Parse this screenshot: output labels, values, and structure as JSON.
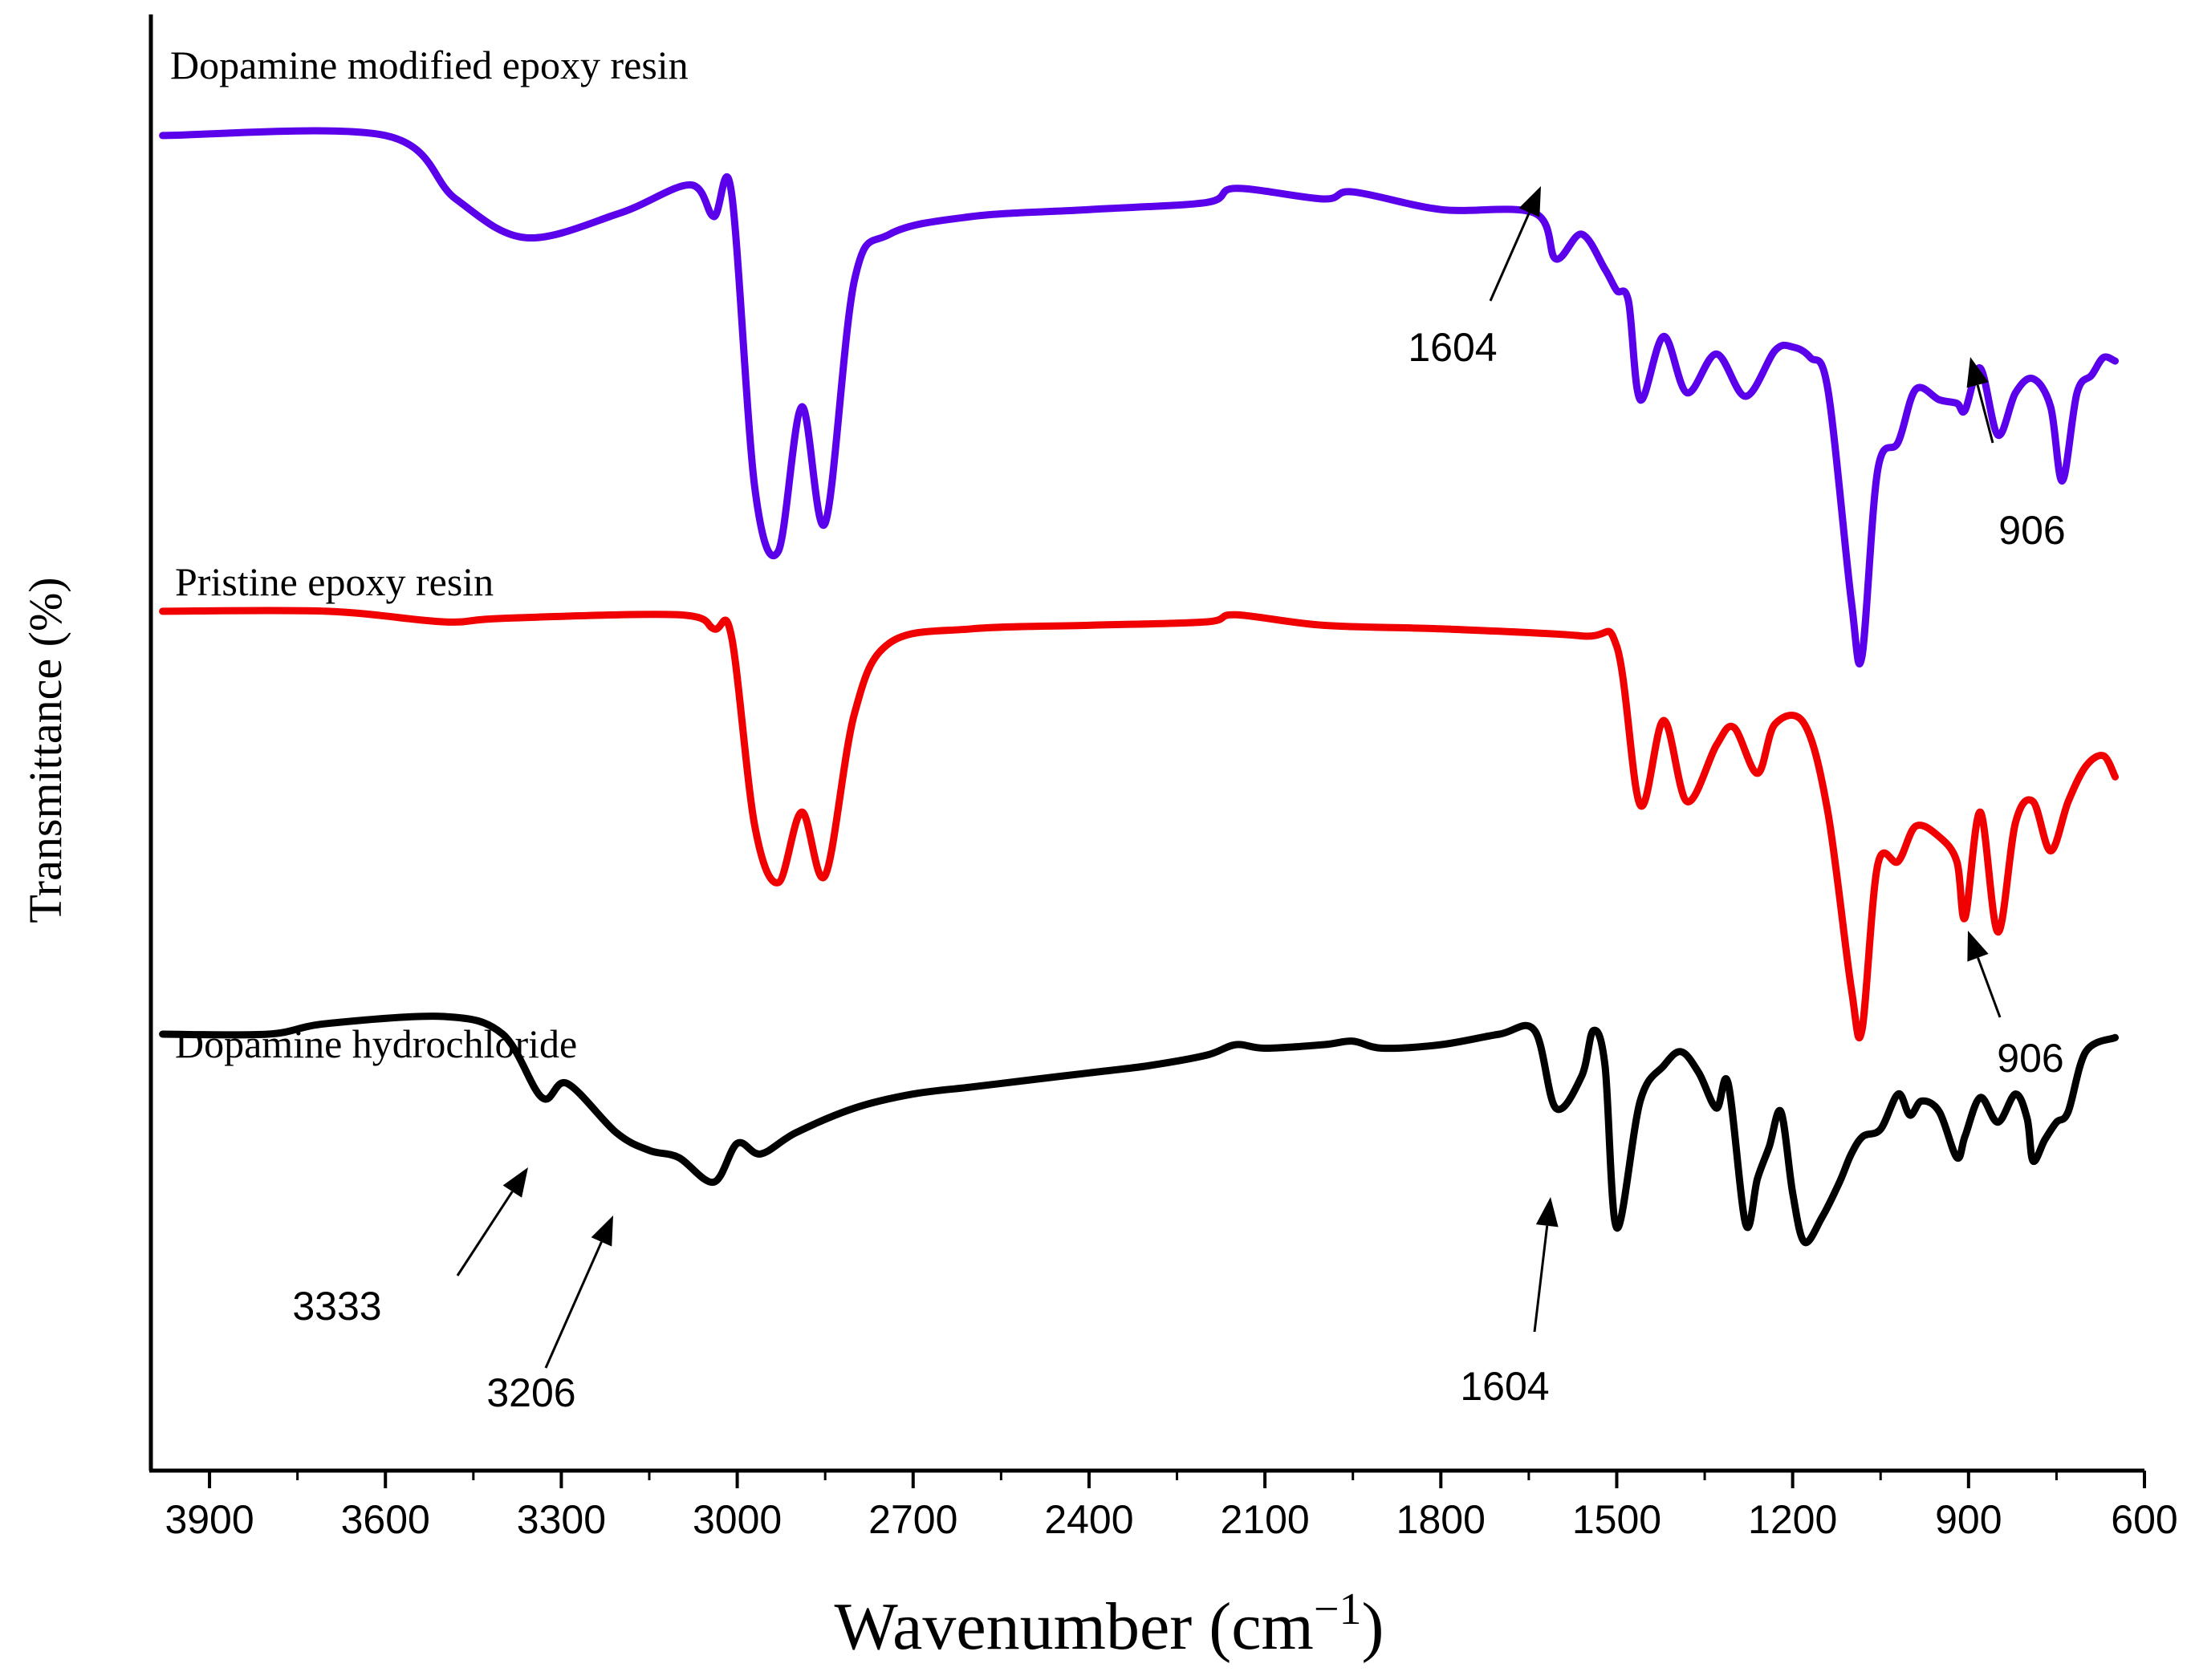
{
  "chart_data": {
    "type": "line",
    "title": "",
    "xlabel": "Wavenumber (cm",
    "xlabel_sup": "−1",
    "xlabel_close": ")",
    "ylabel": "Transmittance (%)",
    "xlim": [
      4000,
      600
    ],
    "x_reversed": true,
    "x_ticks": [
      3900,
      3600,
      3300,
      3000,
      2700,
      2400,
      2100,
      1800,
      1500,
      1200,
      900,
      600
    ],
    "y_ticks_shown": false,
    "grid": false,
    "series": [
      {
        "name": "Dopamine modified epoxy resin",
        "color": "#5b00ea",
        "baseline": 2.0,
        "offset": 3.0,
        "points": [
          [
            3980,
            3.52
          ],
          [
            3600,
            3.52
          ],
          [
            3480,
            3.34
          ],
          [
            3360,
            3.23
          ],
          [
            3200,
            3.3
          ],
          [
            3080,
            3.38
          ],
          [
            3040,
            3.29
          ],
          [
            3010,
            3.36
          ],
          [
            2970,
            2.52
          ],
          [
            2930,
            2.34
          ],
          [
            2890,
            2.75
          ],
          [
            2850,
            2.42
          ],
          [
            2800,
            3.11
          ],
          [
            2740,
            3.24
          ],
          [
            2600,
            3.29
          ],
          [
            2400,
            3.31
          ],
          [
            2200,
            3.33
          ],
          [
            2150,
            3.37
          ],
          [
            2000,
            3.34
          ],
          [
            1950,
            3.36
          ],
          [
            1800,
            3.31
          ],
          [
            1640,
            3.3
          ],
          [
            1604,
            3.17
          ],
          [
            1560,
            3.24
          ],
          [
            1520,
            3.14
          ],
          [
            1500,
            3.08
          ],
          [
            1480,
            3.05
          ],
          [
            1460,
            2.77
          ],
          [
            1420,
            2.95
          ],
          [
            1380,
            2.79
          ],
          [
            1330,
            2.9
          ],
          [
            1280,
            2.78
          ],
          [
            1230,
            2.91
          ],
          [
            1200,
            2.92
          ],
          [
            1170,
            2.89
          ],
          [
            1140,
            2.8
          ],
          [
            1100,
            2.2
          ],
          [
            1082,
            2.04
          ],
          [
            1055,
            2.57
          ],
          [
            1020,
            2.65
          ],
          [
            990,
            2.8
          ],
          [
            950,
            2.77
          ],
          [
            920,
            2.76
          ],
          [
            906,
            2.74
          ],
          [
            880,
            2.86
          ],
          [
            850,
            2.67
          ],
          [
            820,
            2.79
          ],
          [
            790,
            2.83
          ],
          [
            760,
            2.75
          ],
          [
            740,
            2.54
          ],
          [
            715,
            2.79
          ],
          [
            690,
            2.84
          ],
          [
            670,
            2.89
          ],
          [
            650,
            2.88
          ]
        ]
      },
      {
        "name": "Pristine epoxy resin",
        "color": "#f00000",
        "baseline": 1.0,
        "offset": 2.0,
        "points": [
          [
            3980,
            2.17
          ],
          [
            3700,
            2.17
          ],
          [
            3500,
            2.14
          ],
          [
            3400,
            2.15
          ],
          [
            3100,
            2.16
          ],
          [
            3040,
            2.12
          ],
          [
            3010,
            2.1
          ],
          [
            2970,
            1.56
          ],
          [
            2930,
            1.4
          ],
          [
            2890,
            1.6
          ],
          [
            2850,
            1.42
          ],
          [
            2800,
            1.88
          ],
          [
            2740,
            2.08
          ],
          [
            2600,
            2.12
          ],
          [
            2400,
            2.13
          ],
          [
            2200,
            2.14
          ],
          [
            2150,
            2.16
          ],
          [
            2000,
            2.13
          ],
          [
            1800,
            2.12
          ],
          [
            1560,
            2.1
          ],
          [
            1500,
            2.07
          ],
          [
            1460,
            1.62
          ],
          [
            1420,
            1.86
          ],
          [
            1380,
            1.63
          ],
          [
            1330,
            1.79
          ],
          [
            1300,
            1.84
          ],
          [
            1260,
            1.71
          ],
          [
            1230,
            1.85
          ],
          [
            1180,
            1.85
          ],
          [
            1140,
            1.6
          ],
          [
            1100,
            1.1
          ],
          [
            1082,
            0.98
          ],
          [
            1055,
            1.45
          ],
          [
            1020,
            1.46
          ],
          [
            990,
            1.56
          ],
          [
            950,
            1.53
          ],
          [
            920,
            1.46
          ],
          [
            906,
            1.3
          ],
          [
            880,
            1.6
          ],
          [
            850,
            1.26
          ],
          [
            820,
            1.57
          ],
          [
            790,
            1.63
          ],
          [
            760,
            1.49
          ],
          [
            730,
            1.63
          ],
          [
            700,
            1.73
          ],
          [
            670,
            1.76
          ],
          [
            650,
            1.7
          ]
        ]
      },
      {
        "name": "Dopamine hydrochloride",
        "color": "#000000",
        "baseline": 0.0,
        "offset": 1.0,
        "points": [
          [
            3980,
            0.97
          ],
          [
            3800,
            0.97
          ],
          [
            3700,
            1.0
          ],
          [
            3500,
            1.02
          ],
          [
            3400,
            0.97
          ],
          [
            3333,
            0.79
          ],
          [
            3290,
            0.83
          ],
          [
            3206,
            0.69
          ],
          [
            3150,
            0.64
          ],
          [
            3100,
            0.62
          ],
          [
            3040,
            0.55
          ],
          [
            3000,
            0.66
          ],
          [
            2960,
            0.63
          ],
          [
            2900,
            0.69
          ],
          [
            2800,
            0.76
          ],
          [
            2700,
            0.8
          ],
          [
            2600,
            0.82
          ],
          [
            2500,
            0.84
          ],
          [
            2400,
            0.86
          ],
          [
            2300,
            0.88
          ],
          [
            2200,
            0.91
          ],
          [
            2150,
            0.94
          ],
          [
            2100,
            0.93
          ],
          [
            2000,
            0.94
          ],
          [
            1950,
            0.95
          ],
          [
            1900,
            0.93
          ],
          [
            1800,
            0.94
          ],
          [
            1700,
            0.97
          ],
          [
            1640,
            0.98
          ],
          [
            1604,
            0.76
          ],
          [
            1560,
            0.85
          ],
          [
            1540,
            0.98
          ],
          [
            1520,
            0.88
          ],
          [
            1500,
            0.42
          ],
          [
            1460,
            0.78
          ],
          [
            1420,
            0.88
          ],
          [
            1390,
            0.92
          ],
          [
            1360,
            0.86
          ],
          [
            1330,
            0.76
          ],
          [
            1310,
            0.83
          ],
          [
            1280,
            0.43
          ],
          [
            1260,
            0.56
          ],
          [
            1240,
            0.65
          ],
          [
            1220,
            0.75
          ],
          [
            1200,
            0.52
          ],
          [
            1180,
            0.38
          ],
          [
            1150,
            0.45
          ],
          [
            1120,
            0.55
          ],
          [
            1100,
            0.63
          ],
          [
            1080,
            0.68
          ],
          [
            1050,
            0.7
          ],
          [
            1020,
            0.8
          ],
          [
            1000,
            0.74
          ],
          [
            980,
            0.78
          ],
          [
            950,
            0.75
          ],
          [
            920,
            0.62
          ],
          [
            906,
            0.68
          ],
          [
            880,
            0.79
          ],
          [
            850,
            0.72
          ],
          [
            820,
            0.8
          ],
          [
            800,
            0.73
          ],
          [
            790,
            0.61
          ],
          [
            770,
            0.67
          ],
          [
            750,
            0.72
          ],
          [
            730,
            0.75
          ],
          [
            700,
            0.92
          ],
          [
            650,
            0.96
          ]
        ]
      }
    ],
    "annotations": [
      {
        "series": "Dopamine modified epoxy resin",
        "text": "1604",
        "x": 1604
      },
      {
        "series": "Dopamine modified epoxy resin",
        "text": "906",
        "x": 906
      },
      {
        "series": "Pristine epoxy resin",
        "text": "906",
        "x": 906
      },
      {
        "series": "Dopamine hydrochloride",
        "text": "3333",
        "x": 3333
      },
      {
        "series": "Dopamine hydrochloride",
        "text": "3206",
        "x": 3206
      },
      {
        "series": "Dopamine hydrochloride",
        "text": "1604",
        "x": 1604
      }
    ]
  }
}
